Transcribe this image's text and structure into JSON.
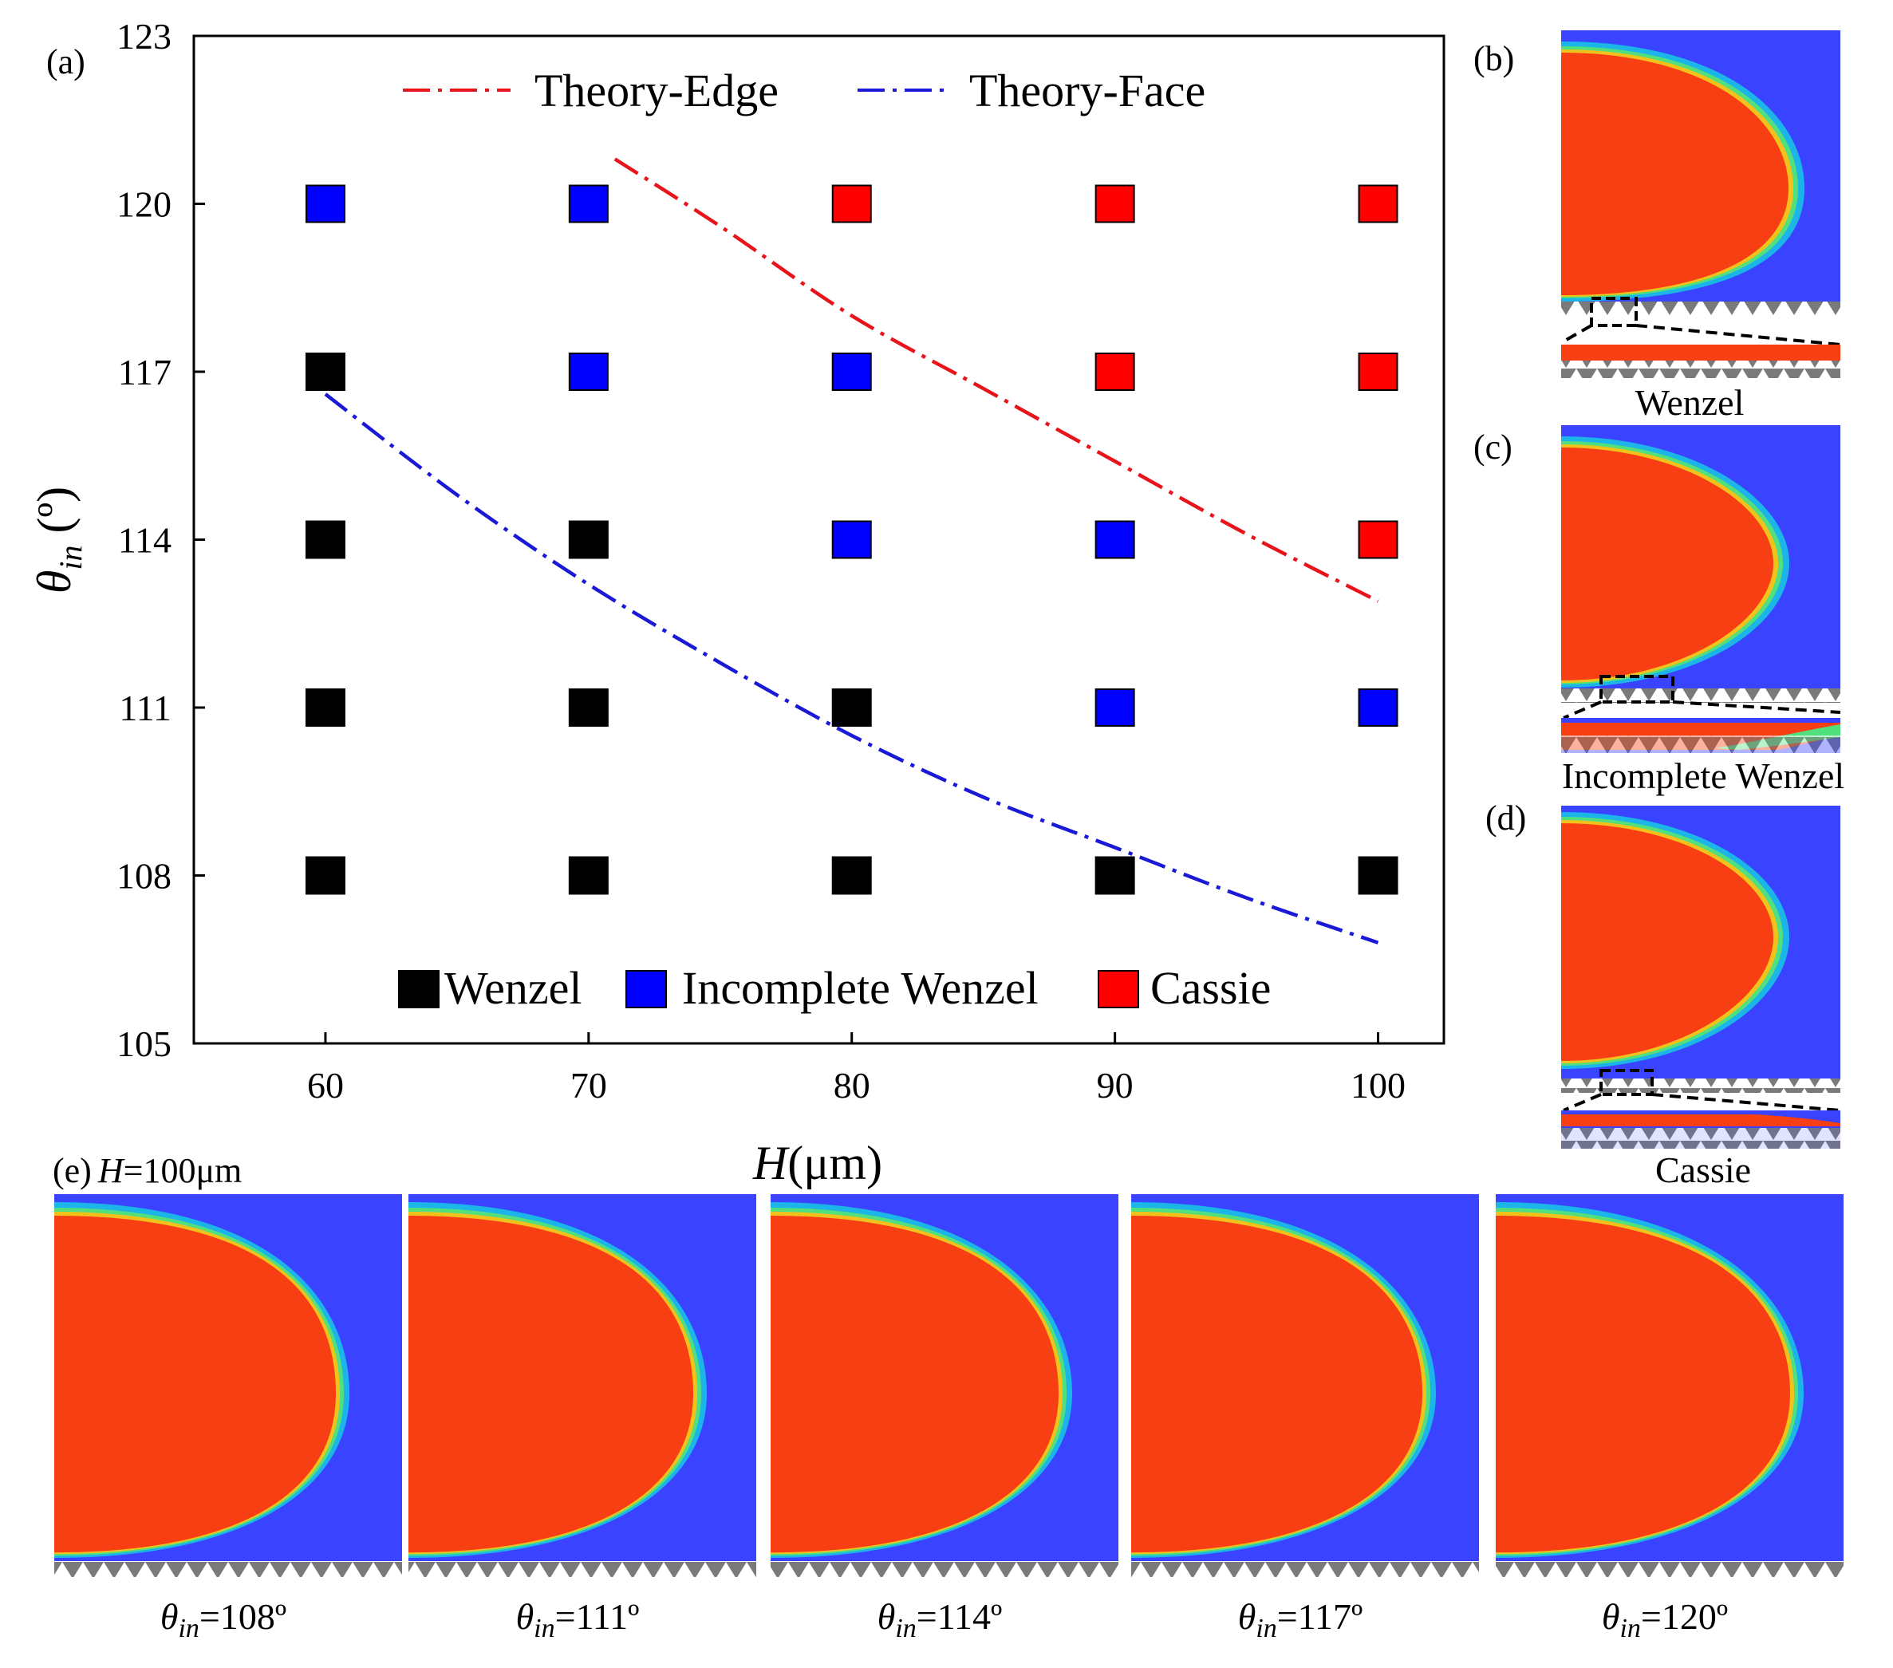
{
  "chart_data": {
    "type": "scatter",
    "panel_label": "(a)",
    "xlabel_italic": "H",
    "xlabel_rest": "(μm)",
    "ylabel_symbol": "θ",
    "ylabel_sub": "in",
    "ylabel_rest": " (º)",
    "xlim": [
      55,
      102.5
    ],
    "ylim": [
      105,
      123
    ],
    "x_ticks": [
      60,
      70,
      80,
      90,
      100
    ],
    "y_ticks": [
      105,
      108,
      111,
      114,
      117,
      120,
      123
    ],
    "state_colors": {
      "Wenzel": "#000000",
      "Incomplete Wenzel": "#0000ff",
      "Cassie": "#ff0000"
    },
    "points": [
      {
        "x": 60,
        "y": 120,
        "state": "Incomplete Wenzel"
      },
      {
        "x": 70,
        "y": 120,
        "state": "Incomplete Wenzel"
      },
      {
        "x": 80,
        "y": 120,
        "state": "Cassie"
      },
      {
        "x": 90,
        "y": 120,
        "state": "Cassie"
      },
      {
        "x": 100,
        "y": 120,
        "state": "Cassie"
      },
      {
        "x": 60,
        "y": 117,
        "state": "Wenzel"
      },
      {
        "x": 70,
        "y": 117,
        "state": "Incomplete Wenzel"
      },
      {
        "x": 80,
        "y": 117,
        "state": "Incomplete Wenzel"
      },
      {
        "x": 90,
        "y": 117,
        "state": "Cassie"
      },
      {
        "x": 100,
        "y": 117,
        "state": "Cassie"
      },
      {
        "x": 60,
        "y": 114,
        "state": "Wenzel"
      },
      {
        "x": 70,
        "y": 114,
        "state": "Wenzel"
      },
      {
        "x": 80,
        "y": 114,
        "state": "Incomplete Wenzel"
      },
      {
        "x": 90,
        "y": 114,
        "state": "Incomplete Wenzel"
      },
      {
        "x": 100,
        "y": 114,
        "state": "Cassie"
      },
      {
        "x": 60,
        "y": 111,
        "state": "Wenzel"
      },
      {
        "x": 70,
        "y": 111,
        "state": "Wenzel"
      },
      {
        "x": 80,
        "y": 111,
        "state": "Wenzel"
      },
      {
        "x": 90,
        "y": 111,
        "state": "Incomplete Wenzel"
      },
      {
        "x": 100,
        "y": 111,
        "state": "Incomplete Wenzel"
      },
      {
        "x": 60,
        "y": 108,
        "state": "Wenzel"
      },
      {
        "x": 70,
        "y": 108,
        "state": "Wenzel"
      },
      {
        "x": 80,
        "y": 108,
        "state": "Wenzel"
      },
      {
        "x": 90,
        "y": 108,
        "state": "Wenzel"
      },
      {
        "x": 100,
        "y": 108,
        "state": "Wenzel"
      }
    ],
    "series": [
      {
        "name": "Theory-Edge",
        "color": "#e8141b",
        "x": [
          71,
          75,
          80,
          85,
          90,
          95,
          100
        ],
        "y": [
          120.8,
          119.6,
          118.0,
          116.7,
          115.4,
          114.1,
          112.9
        ]
      },
      {
        "name": "Theory-Face",
        "color": "#1a1ad6",
        "x": [
          60,
          65,
          70,
          75,
          80,
          85,
          90,
          95,
          100
        ],
        "y": [
          116.6,
          114.8,
          113.2,
          111.8,
          110.5,
          109.4,
          108.5,
          107.6,
          106.8
        ]
      }
    ],
    "legend_lines": [
      "Theory-Edge",
      "Theory-Face"
    ],
    "legend_markers": [
      "Wenzel",
      "Incomplete Wenzel",
      "Cassie"
    ]
  },
  "side_panels": [
    {
      "label": "(b)",
      "caption": "Wenzel"
    },
    {
      "label": "(c)",
      "caption": "Incomplete Wenzel"
    },
    {
      "label": "(d)",
      "caption": "Cassie"
    }
  ],
  "bottom_panel": {
    "label": "(e)",
    "param_italic": "H",
    "param_rest": "=100μm",
    "symbol": "θ",
    "sub": "in",
    "angles": [
      "=108º",
      "=111º",
      "=114º",
      "=117º",
      "=120º"
    ]
  },
  "colors": {
    "liquid": "#f73f13",
    "gas": "#3a43ff",
    "rim_1": "#f1c21b",
    "rim_2": "#52e07f",
    "rim_3": "#1bb5e8"
  }
}
